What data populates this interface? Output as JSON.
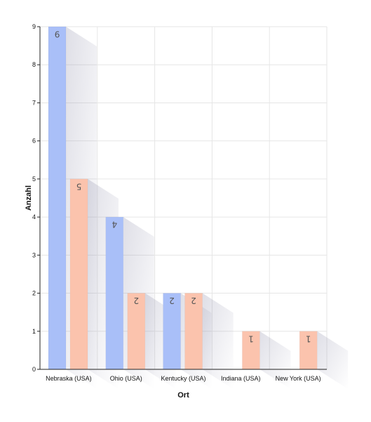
{
  "chart_data": {
    "type": "bar",
    "title": "",
    "xlabel": "Ort",
    "ylabel": "Anzahl",
    "ylim": [
      0,
      9
    ],
    "yticks": [
      0,
      1,
      2,
      3,
      4,
      5,
      6,
      7,
      8,
      9
    ],
    "grid": true,
    "categories": [
      "Nebraska (USA)",
      "Ohio (USA)",
      "Kentucky (USA)",
      "Indiana (USA)",
      "New York (USA)"
    ],
    "series": [
      {
        "color": "#a9bff8",
        "values": [
          9,
          4,
          2,
          0,
          0
        ]
      },
      {
        "color": "#fbc3ad",
        "values": [
          5,
          2,
          2,
          1,
          1
        ]
      }
    ],
    "data_labels": "rotated-180-inside-top"
  }
}
